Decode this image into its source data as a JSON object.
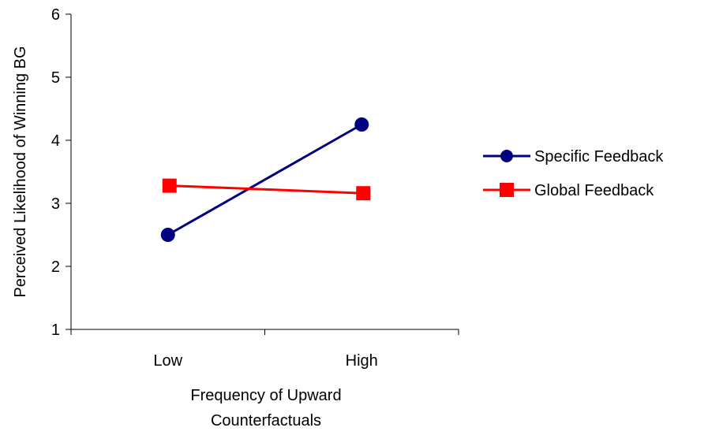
{
  "chart_data": {
    "type": "line",
    "categories": [
      "Low",
      "High"
    ],
    "series": [
      {
        "name": "Specific Feedback",
        "values": [
          2.5,
          4.25
        ],
        "color": "#000080",
        "marker": "circle"
      },
      {
        "name": "Global Feedback",
        "values": [
          3.28,
          3.16
        ],
        "color": "#ff0000",
        "marker": "square"
      }
    ],
    "xlabel": [
      "Frequency of Upward",
      "Counterfactuals"
    ],
    "ylabel": "Perceived Likelihood of Winning BG",
    "ylim": [
      1,
      6
    ],
    "yticks": [
      1,
      2,
      3,
      4,
      5,
      6
    ],
    "grid": false,
    "legend_position": "right"
  }
}
